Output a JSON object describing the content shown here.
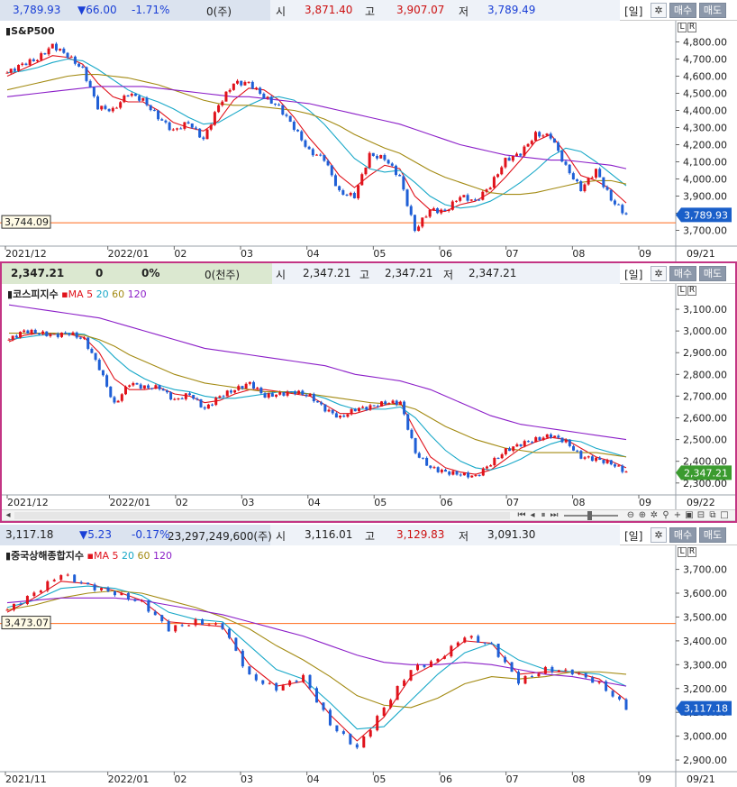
{
  "panels": [
    {
      "header": {
        "price": "3,789.93",
        "change": "▼66.00",
        "pct": "-1.71%",
        "volume": "0(주)",
        "open_label": "시",
        "open": "3,871.40",
        "high_label": "고",
        "high": "3,907.07",
        "low_label": "저",
        "low": "3,789.49",
        "period": "[일]",
        "buy": "매수",
        "sell": "매도"
      },
      "name": "S&P500",
      "ma_legend": null,
      "axis_date": "09/21",
      "last_price_label": "3,789.93",
      "ref_line_label": "3,744.09"
    },
    {
      "header": {
        "price": "2,347.21",
        "change": "0",
        "pct": "0%",
        "volume": "0(천주)",
        "open_label": "시",
        "open": "2,347.21",
        "high_label": "고",
        "high": "2,347.21",
        "low_label": "저",
        "low": "2,347.21",
        "period": "[일]",
        "buy": "매수",
        "sell": "매도"
      },
      "name": "코스피지수",
      "ma_legend": {
        "prefix": "MA",
        "p1": "5",
        "p2": "20",
        "p3": "60",
        "p4": "120"
      },
      "axis_date": "09/22",
      "last_price_label": "2,347.21",
      "ref_line_label": ""
    },
    {
      "header": {
        "price": "3,117.18",
        "change": "▼5.23",
        "pct": "-0.17%",
        "volume": "23,297,249,600(주)",
        "open_label": "시",
        "open": "3,116.01",
        "high_label": "고",
        "high": "3,129.83",
        "low_label": "저",
        "low": "3,091.30",
        "period": "[일]",
        "buy": "매수",
        "sell": "매도"
      },
      "name": "중국상해종합지수",
      "ma_legend": {
        "prefix": "MA",
        "p1": "5",
        "p2": "20",
        "p3": "60",
        "p4": "120"
      },
      "axis_date": "09/21",
      "last_price_label": "3,117.18",
      "ref_line_label": "3,473.07"
    }
  ],
  "scale_buttons": {
    "l": "L",
    "r": "R"
  },
  "toolbar_icons": [
    "scroll-left-icon",
    "scroll-first-icon",
    "pause-icon",
    "scroll-last-icon",
    "zoom-slider",
    "zoom-out-icon",
    "zoom-in-icon",
    "settings-icon",
    "chart-type-icon",
    "crosshair-icon",
    "save-icon",
    "window-icon",
    "fullscreen-icon"
  ],
  "colors": {
    "up": "#e0121b",
    "down": "#1f5fd6",
    "ma5": "#e0121b",
    "ma20": "#18a8c8",
    "ma60": "#a38a12",
    "ma120": "#8b1ec8",
    "ref_line": "#ff6a1a",
    "last_blue": "#1a5fc9",
    "last_green": "#3b9b2f",
    "panel2_border": "#c33584"
  },
  "chart_data": [
    {
      "type": "candlestick",
      "title": "S&P500",
      "x_ticks": [
        "2021/12",
        "2022/01",
        "02",
        "03",
        "04",
        "05",
        "06",
        "07",
        "08",
        "09"
      ],
      "y_ticks": [
        3700,
        3800,
        3900,
        4000,
        4100,
        4200,
        4300,
        4400,
        4500,
        4600,
        4700,
        4800
      ],
      "ylim": [
        3650,
        4850
      ],
      "last_value": 3789.93,
      "ref_line": 3744.09,
      "x": [
        "2021-12-06",
        "2021-12-13",
        "2021-12-20",
        "2021-12-27",
        "2022-01-03",
        "2022-01-10",
        "2022-01-17",
        "2022-01-24",
        "2022-01-31",
        "2022-02-07",
        "2022-02-14",
        "2022-02-21",
        "2022-02-28",
        "2022-03-07",
        "2022-03-14",
        "2022-03-21",
        "2022-03-28",
        "2022-04-04",
        "2022-04-11",
        "2022-04-18",
        "2022-04-25",
        "2022-05-02",
        "2022-05-09",
        "2022-05-16",
        "2022-05-23",
        "2022-05-30",
        "2022-06-06",
        "2022-06-13",
        "2022-06-20",
        "2022-06-27",
        "2022-07-04",
        "2022-07-11",
        "2022-07-18",
        "2022-07-25",
        "2022-08-01",
        "2022-08-08",
        "2022-08-15",
        "2022-08-22",
        "2022-08-29",
        "2022-09-05",
        "2022-09-12",
        "2022-09-19"
      ],
      "series": [
        {
          "name": "price",
          "values": [
            4620,
            4670,
            4700,
            4780,
            4720,
            4640,
            4420,
            4400,
            4500,
            4460,
            4360,
            4280,
            4330,
            4230,
            4430,
            4560,
            4560,
            4480,
            4420,
            4300,
            4160,
            4120,
            3920,
            3900,
            4140,
            4120,
            4010,
            3700,
            3820,
            3810,
            3900,
            3870,
            3960,
            4110,
            4150,
            4260,
            4250,
            4070,
            3940,
            4050,
            3880,
            3790
          ]
        },
        {
          "name": "MA 5",
          "values": [
            4600,
            4640,
            4680,
            4720,
            4710,
            4670,
            4560,
            4480,
            4450,
            4450,
            4400,
            4330,
            4300,
            4280,
            4340,
            4460,
            4530,
            4520,
            4460,
            4360,
            4240,
            4140,
            4020,
            3950,
            4020,
            4080,
            4060,
            3900,
            3820,
            3810,
            3850,
            3870,
            3920,
            4010,
            4110,
            4220,
            4260,
            4150,
            4020,
            3990,
            3940,
            3860
          ]
        },
        {
          "name": "MA 20",
          "values": [
            4620,
            4630,
            4650,
            4680,
            4700,
            4690,
            4640,
            4580,
            4520,
            4480,
            4450,
            4410,
            4360,
            4320,
            4330,
            4380,
            4430,
            4470,
            4480,
            4460,
            4400,
            4320,
            4220,
            4120,
            4060,
            4040,
            4050,
            3980,
            3900,
            3850,
            3830,
            3840,
            3870,
            3920,
            3980,
            4050,
            4130,
            4180,
            4160,
            4100,
            4030,
            3960
          ]
        },
        {
          "name": "MA 60",
          "values": [
            4520,
            4540,
            4560,
            4580,
            4600,
            4610,
            4610,
            4600,
            4590,
            4570,
            4550,
            4520,
            4490,
            4460,
            4440,
            4430,
            4430,
            4420,
            4410,
            4400,
            4380,
            4350,
            4310,
            4260,
            4220,
            4180,
            4150,
            4100,
            4050,
            4010,
            3980,
            3950,
            3920,
            3910,
            3910,
            3920,
            3940,
            3960,
            3980,
            3990,
            3990,
            3970
          ]
        },
        {
          "name": "MA 120",
          "values": [
            4480,
            4490,
            4500,
            4510,
            4520,
            4530,
            4540,
            4540,
            4540,
            4540,
            4530,
            4520,
            4510,
            4500,
            4490,
            4480,
            4480,
            4470,
            4460,
            4450,
            4440,
            4420,
            4400,
            4380,
            4360,
            4340,
            4320,
            4290,
            4260,
            4230,
            4200,
            4180,
            4160,
            4140,
            4130,
            4120,
            4110,
            4110,
            4100,
            4090,
            4080,
            4060
          ]
        }
      ]
    },
    {
      "type": "candlestick",
      "title": "코스피지수",
      "x_ticks": [
        "2021/12",
        "2022/01",
        "02",
        "03",
        "04",
        "05",
        "06",
        "07",
        "08",
        "09"
      ],
      "y_ticks": [
        2300,
        2400,
        2500,
        2600,
        2700,
        2800,
        2900,
        3000,
        3100
      ],
      "ylim": [
        2270,
        3150
      ],
      "last_value": 2347.21,
      "x": [
        "2021-12-06",
        "2021-12-13",
        "2021-12-20",
        "2021-12-27",
        "2022-01-03",
        "2022-01-10",
        "2022-01-17",
        "2022-01-24",
        "2022-01-31",
        "2022-02-07",
        "2022-02-14",
        "2022-02-21",
        "2022-02-28",
        "2022-03-07",
        "2022-03-14",
        "2022-03-21",
        "2022-03-28",
        "2022-04-04",
        "2022-04-11",
        "2022-04-18",
        "2022-04-25",
        "2022-05-02",
        "2022-05-09",
        "2022-05-16",
        "2022-05-23",
        "2022-05-30",
        "2022-06-06",
        "2022-06-13",
        "2022-06-20",
        "2022-06-27",
        "2022-07-04",
        "2022-07-11",
        "2022-07-18",
        "2022-07-25",
        "2022-08-01",
        "2022-08-08",
        "2022-08-15",
        "2022-08-22",
        "2022-08-29",
        "2022-09-05",
        "2022-09-12",
        "2022-09-19"
      ],
      "series": [
        {
          "name": "price",
          "values": [
            2960,
            3000,
            2990,
            2980,
            2990,
            2960,
            2830,
            2660,
            2760,
            2740,
            2740,
            2680,
            2710,
            2640,
            2700,
            2730,
            2760,
            2700,
            2710,
            2720,
            2700,
            2640,
            2600,
            2640,
            2650,
            2670,
            2670,
            2440,
            2370,
            2350,
            2340,
            2330,
            2390,
            2450,
            2480,
            2500,
            2520,
            2490,
            2420,
            2410,
            2390,
            2350
          ]
        },
        {
          "name": "MA 5",
          "values": [
            2950,
            2980,
            2990,
            2985,
            2985,
            2970,
            2900,
            2780,
            2730,
            2730,
            2740,
            2710,
            2700,
            2670,
            2680,
            2710,
            2730,
            2730,
            2720,
            2710,
            2700,
            2660,
            2620,
            2620,
            2640,
            2660,
            2670,
            2540,
            2420,
            2370,
            2350,
            2340,
            2360,
            2410,
            2460,
            2490,
            2510,
            2500,
            2460,
            2420,
            2400,
            2370
          ]
        },
        {
          "name": "MA 20",
          "values": [
            2960,
            2970,
            2980,
            2985,
            2990,
            2985,
            2950,
            2880,
            2820,
            2780,
            2750,
            2730,
            2720,
            2700,
            2690,
            2690,
            2700,
            2710,
            2720,
            2720,
            2710,
            2690,
            2660,
            2640,
            2640,
            2640,
            2650,
            2600,
            2520,
            2450,
            2400,
            2370,
            2360,
            2380,
            2410,
            2450,
            2480,
            2500,
            2490,
            2460,
            2440,
            2420
          ]
        },
        {
          "name": "MA 60",
          "values": [
            2990,
            2990,
            2990,
            2990,
            2985,
            2980,
            2960,
            2930,
            2890,
            2860,
            2830,
            2800,
            2780,
            2760,
            2750,
            2740,
            2730,
            2720,
            2720,
            2715,
            2710,
            2700,
            2690,
            2680,
            2670,
            2665,
            2660,
            2640,
            2600,
            2560,
            2530,
            2500,
            2480,
            2460,
            2450,
            2440,
            2440,
            2440,
            2440,
            2440,
            2430,
            2420
          ]
        },
        {
          "name": "MA 120",
          "values": [
            3120,
            3110,
            3100,
            3090,
            3080,
            3070,
            3060,
            3040,
            3020,
            3000,
            2980,
            2960,
            2940,
            2920,
            2910,
            2900,
            2890,
            2880,
            2870,
            2860,
            2850,
            2840,
            2820,
            2800,
            2790,
            2780,
            2770,
            2750,
            2730,
            2700,
            2670,
            2640,
            2610,
            2590,
            2570,
            2560,
            2550,
            2540,
            2530,
            2520,
            2510,
            2500
          ]
        }
      ]
    },
    {
      "type": "candlestick",
      "title": "중국상해종합지수",
      "x_ticks": [
        "2021/11",
        "2022/01",
        "02",
        "03",
        "04",
        "05",
        "06",
        "07",
        "08",
        "09"
      ],
      "y_ticks": [
        2900,
        3000,
        3100,
        3200,
        3300,
        3400,
        3500,
        3600,
        3700
      ],
      "ylim": [
        2870,
        3740
      ],
      "last_value": 3117.18,
      "ref_line": 3473.07,
      "x": [
        "2021-11-08",
        "2021-11-22",
        "2021-12-06",
        "2021-12-20",
        "2022-01-03",
        "2022-01-17",
        "2022-01-31",
        "2022-02-14",
        "2022-02-28",
        "2022-03-14",
        "2022-03-28",
        "2022-04-11",
        "2022-04-25",
        "2022-05-09",
        "2022-05-23",
        "2022-06-06",
        "2022-06-20",
        "2022-07-04",
        "2022-07-18",
        "2022-08-01",
        "2022-08-15",
        "2022-08-29",
        "2022-09-12",
        "2022-09-19"
      ],
      "series": [
        {
          "name": "price",
          "values": [
            3530,
            3600,
            3680,
            3630,
            3600,
            3560,
            3450,
            3480,
            3460,
            3250,
            3200,
            3250,
            3050,
            2950,
            3120,
            3280,
            3320,
            3420,
            3380,
            3230,
            3280,
            3270,
            3220,
            3120
          ]
        },
        {
          "name": "MA 5",
          "values": [
            3520,
            3580,
            3650,
            3640,
            3610,
            3570,
            3480,
            3470,
            3460,
            3300,
            3210,
            3230,
            3090,
            2980,
            3080,
            3250,
            3310,
            3400,
            3390,
            3260,
            3270,
            3270,
            3240,
            3150
          ]
        },
        {
          "name": "MA 20",
          "values": [
            3540,
            3570,
            3620,
            3630,
            3620,
            3590,
            3520,
            3490,
            3480,
            3380,
            3280,
            3240,
            3140,
            3030,
            3040,
            3150,
            3260,
            3350,
            3390,
            3320,
            3280,
            3270,
            3260,
            3210
          ]
        },
        {
          "name": "MA 60",
          "values": [
            3530,
            3550,
            3580,
            3600,
            3610,
            3600,
            3570,
            3540,
            3500,
            3450,
            3380,
            3320,
            3250,
            3170,
            3130,
            3120,
            3160,
            3220,
            3250,
            3240,
            3250,
            3270,
            3270,
            3260
          ]
        },
        {
          "name": "MA 120",
          "values": [
            3560,
            3570,
            3580,
            3580,
            3580,
            3570,
            3550,
            3530,
            3510,
            3480,
            3450,
            3420,
            3380,
            3340,
            3310,
            3300,
            3300,
            3310,
            3300,
            3280,
            3260,
            3250,
            3230,
            3210
          ]
        }
      ]
    }
  ]
}
